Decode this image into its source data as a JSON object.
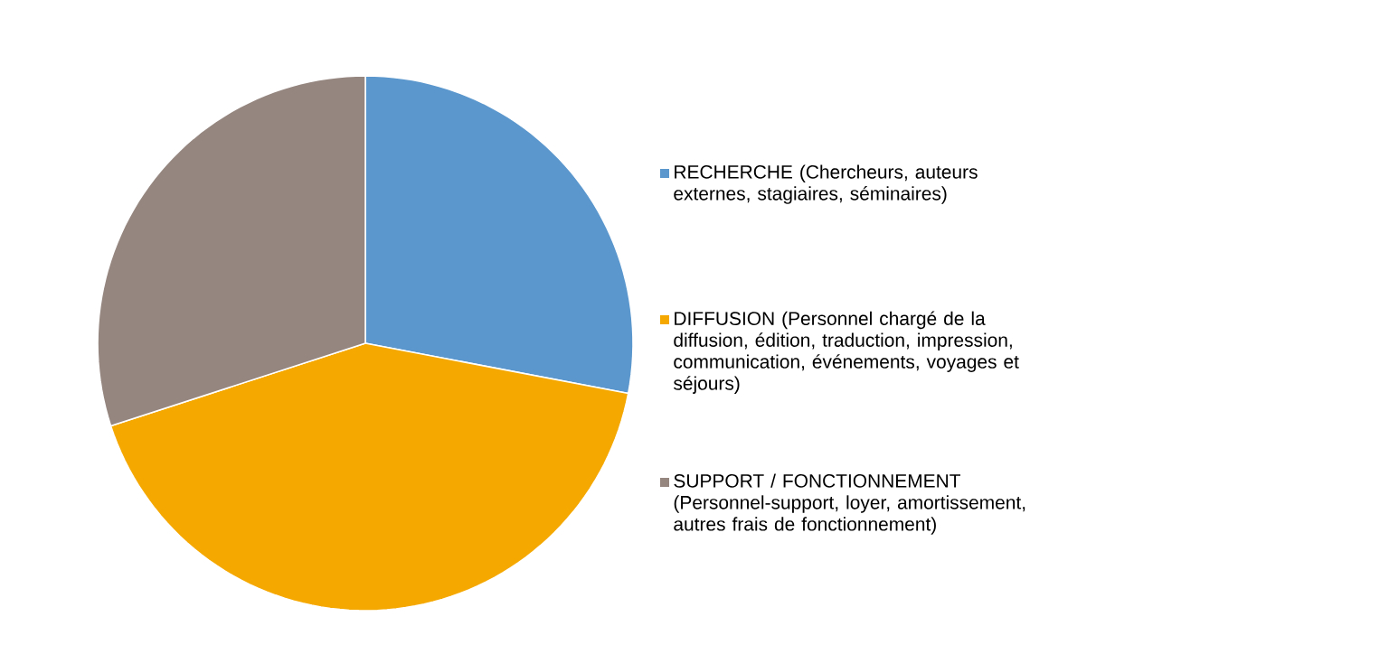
{
  "chart_data": {
    "type": "pie",
    "categories": [
      "RECHERCHE (Chercheurs, auteurs externes, stagiaires, séminaires)",
      "DIFFUSION (Personnel chargé de la diffusion, édition, traduction, impression, communication, événements, voyages et séjours)",
      "SUPPORT / FONCTIONNEMENT (Personnel-support, loyer, amortissement, autres frais de fonctionnement)"
    ],
    "values": [
      28,
      42,
      30
    ],
    "colors": [
      "#5b97cd",
      "#f5a800",
      "#958680"
    ],
    "legend": "right"
  }
}
